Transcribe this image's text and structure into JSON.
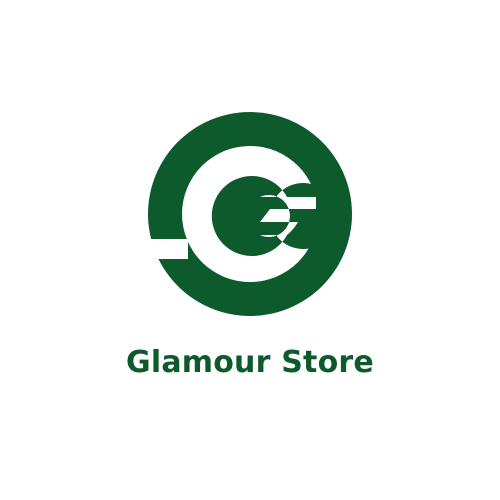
{
  "brand": {
    "name": "Glamour Store",
    "color": "#0d5a2d",
    "background": "#ffffff",
    "logo_icon": "letter-g-monogram-icon"
  }
}
